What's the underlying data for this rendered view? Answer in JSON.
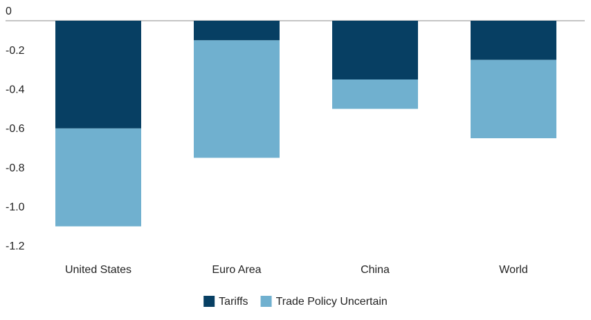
{
  "chart_data": {
    "type": "stacked_bar",
    "categories": [
      "United States",
      "Euro Area",
      "China",
      "World"
    ],
    "series": [
      {
        "name": "Tariffs",
        "color": "#073f63",
        "values": [
          -0.55,
          -0.1,
          -0.3,
          -0.2
        ]
      },
      {
        "name": "Trade Policy Uncertain",
        "color": "#70b0cf",
        "values": [
          -0.5,
          -0.6,
          -0.15,
          -0.4
        ]
      }
    ],
    "ylim": [
      -1.2,
      0
    ],
    "yticks": [
      0,
      -0.2,
      -0.4,
      -0.6,
      -0.8,
      {
        "value": -1,
        "label": "-1.0"
      },
      -1.2
    ],
    "grid": false,
    "legend": "bottom"
  }
}
